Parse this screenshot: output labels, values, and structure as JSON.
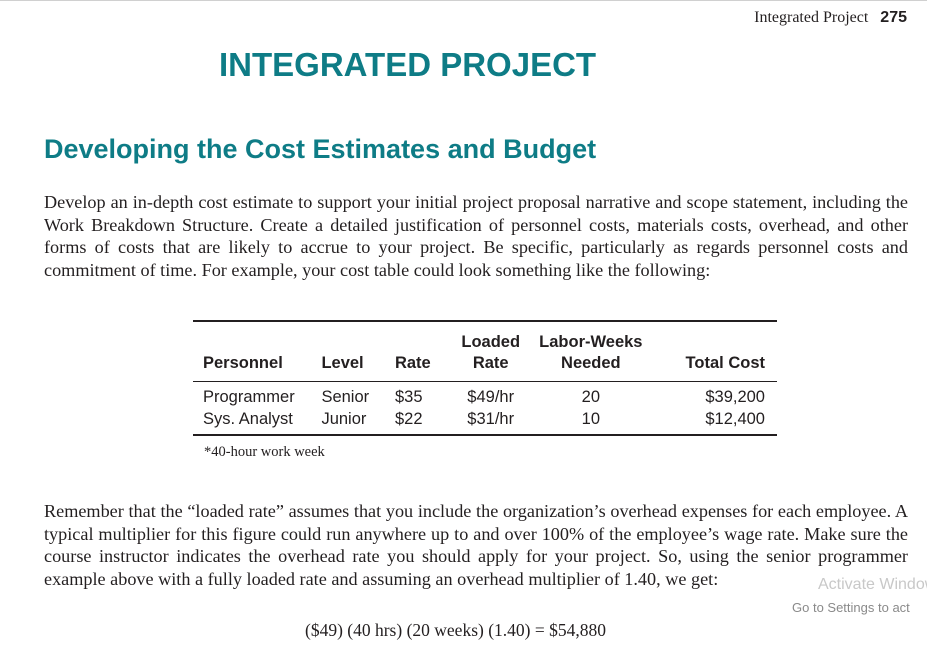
{
  "header": {
    "running_title": "Integrated Project",
    "page_number": "275"
  },
  "main_title": "INTEGRATED PROJECT",
  "section_heading": "Developing the Cost Estimates and Budget",
  "paragraphs": {
    "intro": "Develop an in-depth cost estimate to support your initial project proposal narrative and scope statement, including the Work Breakdown Structure. Create a detailed justification of personnel costs, materials costs, overhead, and other forms of costs that are likely to accrue to your project. Be specific, particularly as regards personnel costs and commitment of time. For example, your cost table could look something like the following:",
    "loaded_rate": "Remember that the “loaded rate” assumes that you include the organization’s overhead expenses for each employee. A typical multiplier for this figure could run anywhere up to and over 100% of the employee’s wage rate. Make sure the course instructor indicates the overhead rate you should apply for your project. So, using the senior programmer example above with a fully loaded rate and assuming an overhead multiplier of 1.40, we get:"
  },
  "cost_table": {
    "headers": {
      "personnel": "Personnel",
      "level": "Level",
      "rate": "Rate",
      "loaded_line1": "Loaded",
      "loaded_line2": "Rate",
      "labor_line1": "Labor-Weeks",
      "labor_line2": "Needed",
      "total": "Total Cost"
    },
    "rows": [
      {
        "personnel": "Programmer",
        "level": "Senior",
        "rate": "$35",
        "loaded_rate": "$49/hr",
        "labor_weeks": "20",
        "total": "$39,200"
      },
      {
        "personnel": "Sys. Analyst",
        "level": "Junior",
        "rate": "$22",
        "loaded_rate": "$31/hr",
        "labor_weeks": "10",
        "total": "$12,400"
      }
    ],
    "footnote": "*40-hour work week"
  },
  "equation": "($49) (40 hrs) (20 weeks) (1.40)  =  $54,880",
  "watermark": {
    "line1": "Activate Windows",
    "line2": "Go to Settings to act"
  },
  "colors": {
    "heading_teal": "#0e7c86",
    "text": "#231f20"
  }
}
